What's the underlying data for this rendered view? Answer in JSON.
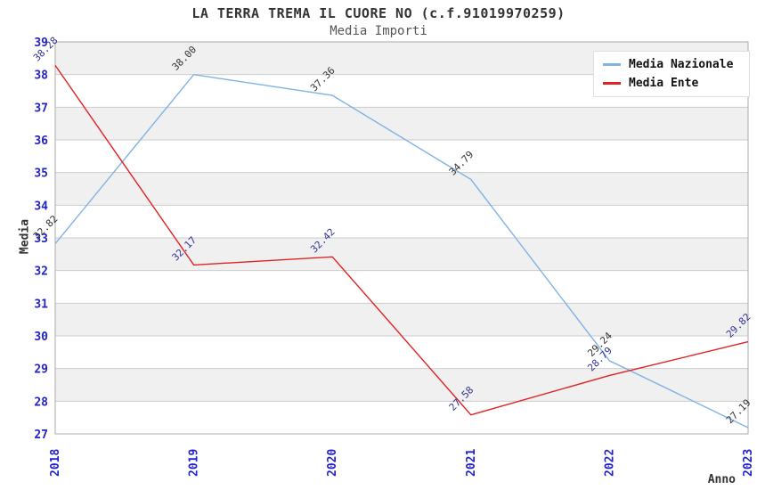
{
  "header": {
    "title": "LA TERRA TREMA IL CUORE NO (c.f.91019970259)",
    "subtitle": "Media Importi"
  },
  "chart_data": {
    "type": "line",
    "title": "LA TERRA TREMA IL CUORE NO (c.f.91019970259)",
    "subtitle": "Media Importi",
    "xlabel": "Anno",
    "ylabel": "Media",
    "categories": [
      "2018",
      "2019",
      "2020",
      "2021",
      "2022",
      "2023"
    ],
    "series": [
      {
        "name": "Media Nazionale",
        "values": [
          32.82,
          38.0,
          37.36,
          34.79,
          29.24,
          27.19
        ],
        "labels": [
          "32.82",
          "38.00",
          "37.36",
          "34.79",
          "29.24",
          "27.19"
        ],
        "color": "#7FB2E5",
        "label_color": "#333333"
      },
      {
        "name": "Media Ente",
        "values": [
          38.28,
          32.17,
          32.42,
          27.58,
          28.79,
          29.82
        ],
        "labels": [
          "38.28",
          "32.17",
          "32.42",
          "27.58",
          "28.79",
          "29.82"
        ],
        "color": "#E02222",
        "label_color": "#333399"
      }
    ],
    "ylim": [
      27,
      39
    ],
    "ytick_step": 1,
    "grid": "horizontal",
    "legend_position": "top-right",
    "colors": {
      "axis_tick": "#2222CC",
      "grid_line": "#CCCCCC",
      "band_gray": "#F0F0F0",
      "band_white": "#FFFFFF",
      "plot_border": "#AAAAAA"
    }
  }
}
